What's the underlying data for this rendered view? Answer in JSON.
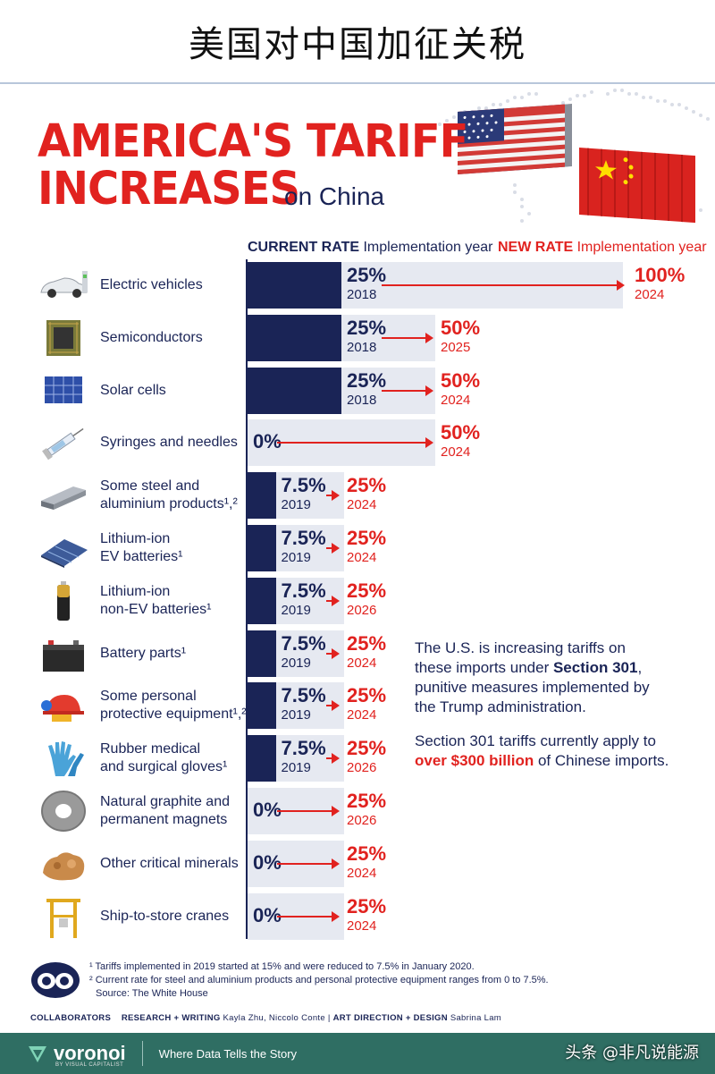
{
  "banner_title": "美国对中国加征关税",
  "title_line1": "AMERICA'S TARIFF",
  "title_line2": "INCREASES",
  "title_sub": "on China",
  "header": {
    "current_label": "CURRENT RATE",
    "current_sub": "Implementation year",
    "new_label": "NEW RATE",
    "new_sub": "Implementation year"
  },
  "chart_data": {
    "type": "bar",
    "title": "AMERICA'S TARIFF INCREASES on China",
    "xlim": [
      0,
      100
    ],
    "series": [
      {
        "name": "CURRENT RATE",
        "values": [
          25,
          25,
          25,
          0,
          7.5,
          7.5,
          7.5,
          7.5,
          7.5,
          7.5,
          0,
          0,
          0
        ]
      },
      {
        "name": "NEW RATE",
        "values": [
          100,
          50,
          50,
          50,
          25,
          25,
          25,
          25,
          25,
          25,
          25,
          25,
          25
        ]
      }
    ],
    "rows": [
      {
        "label": "Electric vehicles",
        "icon": "electric-vehicle-icon",
        "current": 25,
        "current_text": "25%",
        "current_year": "2018",
        "new": 100,
        "new_text": "100%",
        "new_year": "2024"
      },
      {
        "label": "Semiconductors",
        "icon": "semiconductor-chip-icon",
        "current": 25,
        "current_text": "25%",
        "current_year": "2018",
        "new": 50,
        "new_text": "50%",
        "new_year": "2025"
      },
      {
        "label": "Solar cells",
        "icon": "solar-panel-icon",
        "current": 25,
        "current_text": "25%",
        "current_year": "2018",
        "new": 50,
        "new_text": "50%",
        "new_year": "2024"
      },
      {
        "label": "Syringes and needles",
        "icon": "syringe-icon",
        "current": 0,
        "current_text": "0%",
        "current_year": "",
        "new": 50,
        "new_text": "50%",
        "new_year": "2024"
      },
      {
        "label": "Some steel and\naluminium products¹,²",
        "icon": "steel-beam-icon",
        "current": 7.5,
        "current_text": "7.5%",
        "current_year": "2019",
        "new": 25,
        "new_text": "25%",
        "new_year": "2024"
      },
      {
        "label": "Lithium-ion\nEV batteries¹",
        "icon": "ev-battery-icon",
        "current": 7.5,
        "current_text": "7.5%",
        "current_year": "2019",
        "new": 25,
        "new_text": "25%",
        "new_year": "2024"
      },
      {
        "label": "Lithium-ion\nnon-EV batteries¹",
        "icon": "cylinder-battery-icon",
        "current": 7.5,
        "current_text": "7.5%",
        "current_year": "2019",
        "new": 25,
        "new_text": "25%",
        "new_year": "2026"
      },
      {
        "label": "Battery parts¹",
        "icon": "car-battery-icon",
        "current": 7.5,
        "current_text": "7.5%",
        "current_year": "2019",
        "new": 25,
        "new_text": "25%",
        "new_year": "2024"
      },
      {
        "label": "Some personal\nprotective equipment¹,²",
        "icon": "hard-hat-icon",
        "current": 7.5,
        "current_text": "7.5%",
        "current_year": "2019",
        "new": 25,
        "new_text": "25%",
        "new_year": "2024"
      },
      {
        "label": "Rubber medical\nand surgical gloves¹",
        "icon": "gloves-icon",
        "current": 7.5,
        "current_text": "7.5%",
        "current_year": "2019",
        "new": 25,
        "new_text": "25%",
        "new_year": "2026"
      },
      {
        "label": "Natural graphite and\npermanent magnets",
        "icon": "magnet-ring-icon",
        "current": 0,
        "current_text": "0%",
        "current_year": "",
        "new": 25,
        "new_text": "25%",
        "new_year": "2026"
      },
      {
        "label": "Other critical minerals",
        "icon": "mineral-ore-icon",
        "current": 0,
        "current_text": "0%",
        "current_year": "",
        "new": 25,
        "new_text": "25%",
        "new_year": "2024"
      },
      {
        "label": "Ship-to-store cranes",
        "icon": "crane-icon",
        "current": 0,
        "current_text": "0%",
        "current_year": "",
        "new": 25,
        "new_text": "25%",
        "new_year": "2024"
      }
    ]
  },
  "note": {
    "p1_a": "The U.S. is increasing tariffs on",
    "p1_b": "these imports under ",
    "p1_bold": "Section 301",
    "p1_c": ",",
    "p1_d": "punitive measures implemented by",
    "p1_e": "the Trump administration.",
    "p2_a": "Section 301 tariffs currently apply to",
    "p2_red": "over $300 billion",
    "p2_b": " of Chinese imports."
  },
  "footnotes": {
    "f1": "¹ Tariffs implemented in 2019 started at 15% and were reduced to 7.5% in January 2020.",
    "f2": "² Current rate for steel and aluminium products and personal protective equipment ranges from 0 to 7.5%.",
    "source": "Source: The White House"
  },
  "collaborators": {
    "label": "COLLABORATORS",
    "research_label": "RESEARCH + WRITING",
    "research_names": "Kayla Zhu, Niccolo Conte",
    "sep": "|",
    "art_label": "ART DIRECTION + DESIGN",
    "art_names": "Sabrina Lam"
  },
  "footer": {
    "brand": "voronoi",
    "by": "BY VISUAL CAPITALIST",
    "tagline": "Where Data Tells the Story",
    "watermark": "头条 @非凡说能源"
  },
  "colors": {
    "navy": "#1a2456",
    "red": "#e1221f",
    "bar_bg": "#e6e9f1",
    "footer_green": "#2f6e63"
  }
}
